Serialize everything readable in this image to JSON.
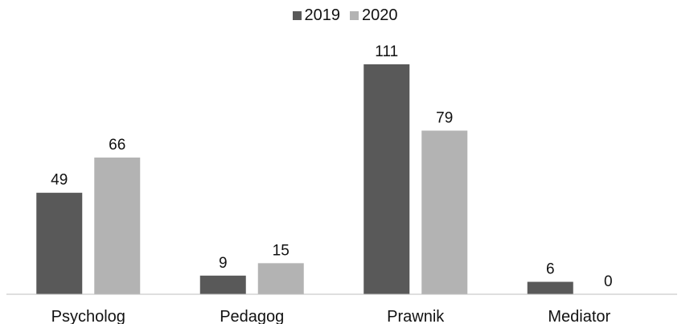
{
  "chart_data": {
    "type": "bar",
    "categories": [
      "Psycholog",
      "Pedagog",
      "Prawnik",
      "Mediator"
    ],
    "series": [
      {
        "name": "2019",
        "values": [
          49,
          9,
          111,
          6
        ],
        "color": "#595959"
      },
      {
        "name": "2020",
        "values": [
          66,
          15,
          79,
          0
        ],
        "color": "#b3b3b3"
      }
    ],
    "title": "",
    "xlabel": "",
    "ylabel": "",
    "ylim": [
      0,
      120
    ],
    "grid": false,
    "legend_position": "top-center",
    "data_labels": true
  }
}
